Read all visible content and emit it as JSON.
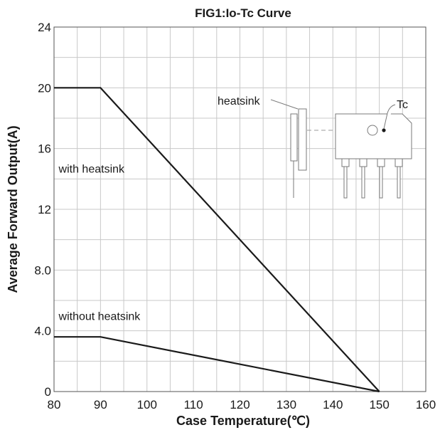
{
  "chart_data": {
    "type": "line",
    "title": "FIG1:Io-Tc Curve",
    "xlabel": "Case Temperature(℃)",
    "ylabel": "Average Forward Output(A)",
    "xlim": [
      80,
      160
    ],
    "ylim": [
      0,
      24
    ],
    "x_ticks": [
      80,
      90,
      100,
      110,
      120,
      130,
      140,
      150,
      160
    ],
    "x_tick_labels": [
      "80",
      "90",
      "100",
      "110",
      "120",
      "130",
      "140",
      "150",
      "160"
    ],
    "y_ticks": [
      0,
      4,
      8,
      12,
      16,
      20,
      24
    ],
    "y_tick_labels": [
      "0",
      "4.0",
      "8.0",
      "12",
      "16",
      "20",
      "24"
    ],
    "grid": true,
    "series": [
      {
        "name": "with heatsink",
        "x": [
          80,
          90,
          150
        ],
        "y": [
          20,
          20,
          0
        ]
      },
      {
        "name": "without heatsink",
        "x": [
          80,
          90,
          150
        ],
        "y": [
          3.6,
          3.6,
          0
        ]
      }
    ],
    "annotations": [
      {
        "text": "with heatsink",
        "x": 81,
        "y": 14.7
      },
      {
        "text": "without heatsink",
        "x": 81,
        "y": 5
      }
    ],
    "inset": {
      "heatsink_label": "heatsink",
      "tc_label": "Tc"
    }
  }
}
